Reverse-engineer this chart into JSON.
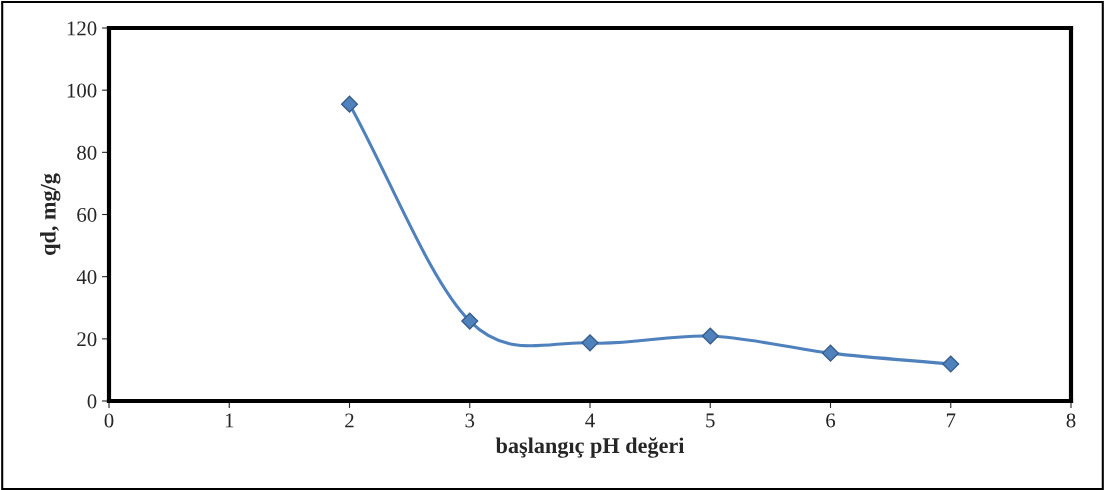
{
  "chart_data": {
    "type": "line",
    "xlabel": "başlangıç pH değeri",
    "ylabel": "qd, mg/g",
    "x": [
      2,
      3,
      4,
      5,
      6,
      7
    ],
    "series": [
      {
        "color": "#4f81bd",
        "values": [
          95.5,
          25.7,
          18.7,
          20.9,
          15.4,
          11.9
        ]
      }
    ],
    "xlim": [
      0,
      8
    ],
    "xticks": [
      0,
      1,
      2,
      3,
      4,
      5,
      6,
      7,
      8
    ],
    "ylim": [
      0,
      120
    ],
    "yticks": [
      0,
      20,
      40,
      60,
      80,
      100,
      120
    ],
    "marker": "diamond",
    "line_style": "solid",
    "grid": false,
    "legend": false
  }
}
